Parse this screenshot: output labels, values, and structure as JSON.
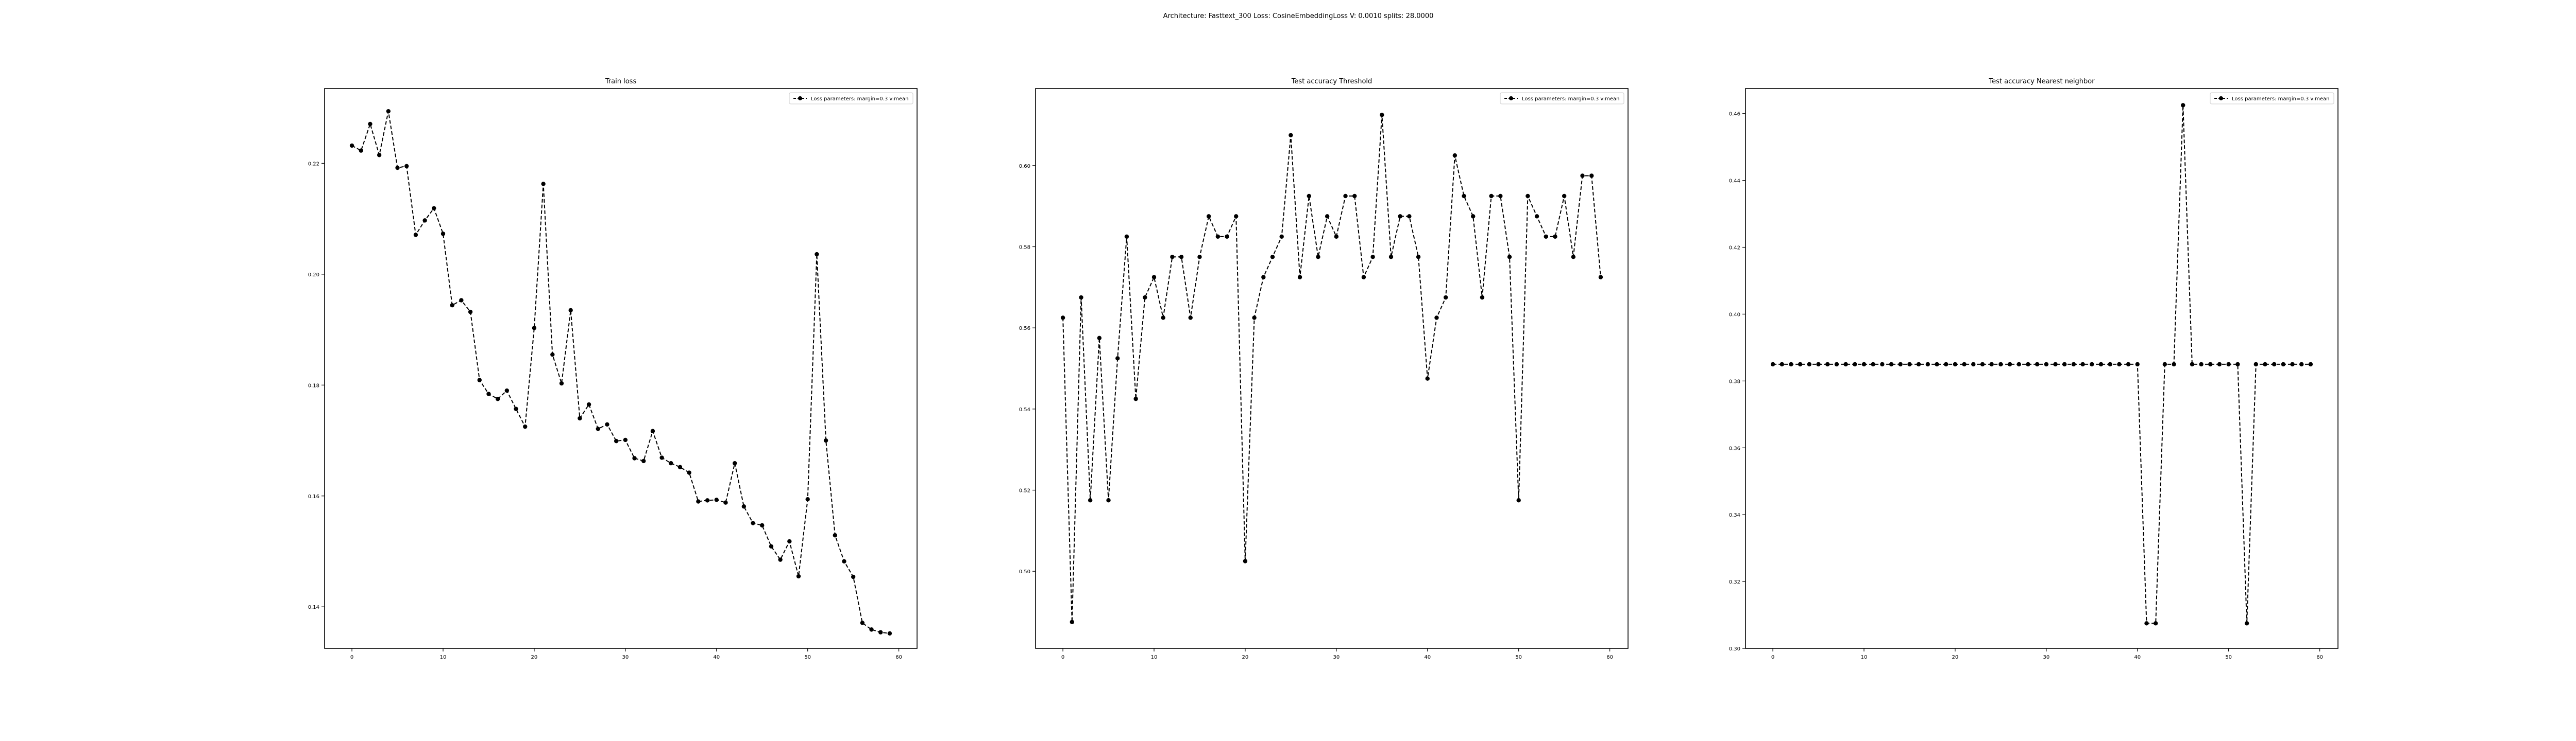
{
  "figure": {
    "suptitle": "Architecture: Fasttext_300 Loss: CosineEmbeddingLoss V: 0.0010 splits: 28.0000"
  },
  "chart_data": [
    {
      "type": "line",
      "title": "Train loss",
      "xlabel": "",
      "ylabel": "",
      "xlim": [
        -3,
        62
      ],
      "ylim": [
        0.1325,
        0.2335
      ],
      "xticks": [
        0,
        10,
        20,
        30,
        40,
        50,
        60
      ],
      "xtick_labels": [
        "0",
        "10",
        "20",
        "30",
        "40",
        "50",
        "60"
      ],
      "yticks": [
        0.14,
        0.16,
        0.18,
        0.2,
        0.22
      ],
      "ytick_labels": [
        "0.14",
        "0.16",
        "0.18",
        "0.20",
        "0.22"
      ],
      "legend_position": "top-right",
      "series": [
        {
          "name": "Loss parameters: margin=0.3 v:mean",
          "style": "dashed line with circle markers",
          "color": "#000000",
          "x": [
            0,
            1,
            2,
            3,
            4,
            5,
            6,
            7,
            8,
            9,
            10,
            11,
            12,
            13,
            14,
            15,
            16,
            17,
            18,
            19,
            20,
            21,
            22,
            23,
            24,
            25,
            26,
            27,
            28,
            29,
            30,
            31,
            32,
            33,
            34,
            35,
            36,
            37,
            38,
            39,
            40,
            41,
            42,
            43,
            44,
            45,
            46,
            47,
            48,
            49,
            50,
            51,
            52,
            53,
            54,
            55,
            56,
            57,
            58,
            59
          ],
          "y": [
            0.2232,
            0.2223,
            0.2271,
            0.2215,
            0.2294,
            0.2192,
            0.2195,
            0.2071,
            0.2097,
            0.2119,
            0.2073,
            0.1944,
            0.1953,
            0.1932,
            0.1809,
            0.1784,
            0.1775,
            0.179,
            0.1757,
            0.1725,
            0.1903,
            0.2163,
            0.1855,
            0.1803,
            0.1935,
            0.174,
            0.1765,
            0.1721,
            0.1729,
            0.1699,
            0.1701,
            0.1668,
            0.1663,
            0.1717,
            0.1669,
            0.1659,
            0.1652,
            0.1642,
            0.159,
            0.1592,
            0.1593,
            0.1588,
            0.1659,
            0.1581,
            0.1551,
            0.1547,
            0.1509,
            0.1485,
            0.1518,
            0.1455,
            0.1594,
            0.2036,
            0.17,
            0.1529,
            0.1482,
            0.1454,
            0.1371,
            0.1359,
            0.1354,
            0.1352
          ]
        }
      ]
    },
    {
      "type": "line",
      "title": "Test accuracy Threshold",
      "xlabel": "",
      "ylabel": "",
      "xlim": [
        -3,
        62
      ],
      "ylim": [
        0.481,
        0.619
      ],
      "xticks": [
        0,
        10,
        20,
        30,
        40,
        50,
        60
      ],
      "xtick_labels": [
        "0",
        "10",
        "20",
        "30",
        "40",
        "50",
        "60"
      ],
      "yticks": [
        0.5,
        0.52,
        0.54,
        0.56,
        0.58,
        0.6
      ],
      "ytick_labels": [
        "0.50",
        "0.52",
        "0.54",
        "0.56",
        "0.58",
        "0.60"
      ],
      "legend_position": "top-right",
      "series": [
        {
          "name": "Loss parameters: margin=0.3 v:mean",
          "style": "dashed line with circle markers",
          "color": "#000000",
          "x": [
            0,
            1,
            2,
            3,
            4,
            5,
            6,
            7,
            8,
            9,
            10,
            11,
            12,
            13,
            14,
            15,
            16,
            17,
            18,
            19,
            20,
            21,
            22,
            23,
            24,
            25,
            26,
            27,
            28,
            29,
            30,
            31,
            32,
            33,
            34,
            35,
            36,
            37,
            38,
            39,
            40,
            41,
            42,
            43,
            44,
            45,
            46,
            47,
            48,
            49,
            50,
            51,
            52,
            53,
            54,
            55,
            56,
            57,
            58,
            59
          ],
          "y": [
            0.5625,
            0.4875,
            0.5675,
            0.5175,
            0.5575,
            0.5175,
            0.5525,
            0.5825,
            0.5425,
            0.5675,
            0.5725,
            0.5625,
            0.5775,
            0.5775,
            0.5625,
            0.5775,
            0.5875,
            0.5825,
            0.5825,
            0.5875,
            0.5025,
            0.5625,
            0.5725,
            0.5775,
            0.5825,
            0.6075,
            0.5725,
            0.5925,
            0.5775,
            0.5875,
            0.5825,
            0.5925,
            0.5925,
            0.5725,
            0.5775,
            0.6125,
            0.5775,
            0.5875,
            0.5875,
            0.5775,
            0.5475,
            0.5625,
            0.5675,
            0.6025,
            0.5925,
            0.5875,
            0.5675,
            0.5925,
            0.5925,
            0.5775,
            0.5175,
            0.5925,
            0.5875,
            0.5825,
            0.5825,
            0.5925,
            0.5775,
            0.5975,
            0.5975,
            0.5725
          ]
        }
      ]
    },
    {
      "type": "line",
      "title": "Test accuracy Nearest neighbor",
      "xlabel": "",
      "ylabel": "",
      "xlim": [
        -3,
        62
      ],
      "ylim": [
        0.3,
        0.4675
      ],
      "xticks": [
        0,
        10,
        20,
        30,
        40,
        50,
        60
      ],
      "xtick_labels": [
        "0",
        "10",
        "20",
        "30",
        "40",
        "50",
        "60"
      ],
      "yticks": [
        0.3,
        0.32,
        0.34,
        0.36,
        0.38,
        0.4,
        0.42,
        0.44,
        0.46
      ],
      "ytick_labels": [
        "0.30",
        "0.32",
        "0.34",
        "0.36",
        "0.38",
        "0.40",
        "0.42",
        "0.44",
        "0.46"
      ],
      "legend_position": "top-right",
      "series": [
        {
          "name": "Loss parameters: margin=0.3 v:mean",
          "style": "dashed line with circle markers",
          "color": "#000000",
          "x": [
            0,
            1,
            2,
            3,
            4,
            5,
            6,
            7,
            8,
            9,
            10,
            11,
            12,
            13,
            14,
            15,
            16,
            17,
            18,
            19,
            20,
            21,
            22,
            23,
            24,
            25,
            26,
            27,
            28,
            29,
            30,
            31,
            32,
            33,
            34,
            35,
            36,
            37,
            38,
            39,
            40,
            41,
            42,
            43,
            44,
            45,
            46,
            47,
            48,
            49,
            50,
            51,
            52,
            53,
            54,
            55,
            56,
            57,
            58,
            59
          ],
          "y": [
            0.385,
            0.385,
            0.385,
            0.385,
            0.385,
            0.385,
            0.385,
            0.385,
            0.385,
            0.385,
            0.385,
            0.385,
            0.385,
            0.385,
            0.385,
            0.385,
            0.385,
            0.385,
            0.385,
            0.385,
            0.385,
            0.385,
            0.385,
            0.385,
            0.385,
            0.385,
            0.385,
            0.385,
            0.385,
            0.385,
            0.385,
            0.385,
            0.385,
            0.385,
            0.385,
            0.385,
            0.385,
            0.385,
            0.385,
            0.385,
            0.385,
            0.3075,
            0.3075,
            0.385,
            0.385,
            0.4625,
            0.385,
            0.385,
            0.385,
            0.385,
            0.385,
            0.385,
            0.3075,
            0.385,
            0.385,
            0.385,
            0.385,
            0.385,
            0.385,
            0.385
          ]
        }
      ]
    }
  ]
}
